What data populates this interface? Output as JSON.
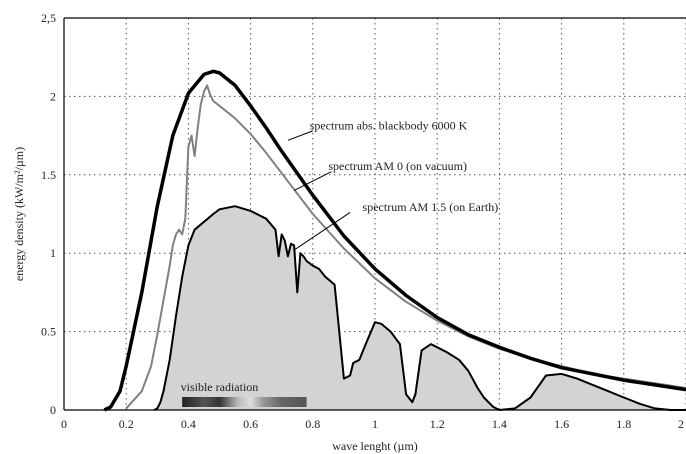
{
  "chart_data": {
    "type": "area",
    "title": "",
    "xlabel": "wave lenght (µm)",
    "ylabel": "energy density (kW/m²/µm)",
    "xlim": [
      0,
      2
    ],
    "ylim": [
      0,
      2.5
    ],
    "x_ticks": [
      0,
      0.2,
      0.4,
      0.6,
      0.8,
      1,
      1.2,
      1.4,
      1.6,
      1.8,
      2
    ],
    "x_tick_labels": [
      "0",
      "0.2",
      "0.4",
      "0.6",
      "0.8",
      "1",
      "1.2",
      "1.4",
      "1.6",
      "1.8",
      "2"
    ],
    "y_ticks": [
      0,
      0.5,
      1,
      1.5,
      2,
      2.5
    ],
    "y_tick_labels": [
      "0",
      "0.5",
      "1",
      "1.5",
      "2",
      "2,5"
    ],
    "grid": true,
    "series": [
      {
        "name": "spectrum abs. blackbody 6000 K",
        "color": "#000000",
        "style": "thick-line",
        "x": [
          0.13,
          0.15,
          0.18,
          0.2,
          0.25,
          0.3,
          0.35,
          0.4,
          0.45,
          0.48,
          0.5,
          0.55,
          0.6,
          0.65,
          0.7,
          0.8,
          0.9,
          1.0,
          1.1,
          1.2,
          1.3,
          1.4,
          1.5,
          1.6,
          1.7,
          1.8,
          1.9,
          2.0
        ],
        "y": [
          0.0,
          0.02,
          0.12,
          0.28,
          0.75,
          1.3,
          1.75,
          2.02,
          2.14,
          2.16,
          2.15,
          2.07,
          1.94,
          1.8,
          1.65,
          1.37,
          1.11,
          0.9,
          0.73,
          0.59,
          0.48,
          0.4,
          0.33,
          0.27,
          0.23,
          0.19,
          0.16,
          0.13
        ]
      },
      {
        "name": "spectrum AM 0 (on vacuum)",
        "color": "#808080",
        "style": "line",
        "x": [
          0.2,
          0.25,
          0.28,
          0.3,
          0.32,
          0.34,
          0.35,
          0.36,
          0.37,
          0.38,
          0.39,
          0.4,
          0.41,
          0.42,
          0.43,
          0.44,
          0.45,
          0.46,
          0.47,
          0.48,
          0.5,
          0.55,
          0.6,
          0.65,
          0.7,
          0.8,
          0.9,
          1.0,
          1.1,
          1.2,
          1.3,
          1.4,
          1.5,
          1.6,
          1.7,
          1.8,
          1.9,
          2.0
        ],
        "y": [
          0.01,
          0.12,
          0.28,
          0.48,
          0.7,
          0.92,
          1.05,
          1.12,
          1.15,
          1.12,
          1.22,
          1.68,
          1.75,
          1.62,
          1.8,
          1.95,
          2.03,
          2.07,
          2.01,
          1.97,
          1.94,
          1.86,
          1.76,
          1.64,
          1.51,
          1.25,
          1.03,
          0.84,
          0.69,
          0.57,
          0.47,
          0.39,
          0.33,
          0.28,
          0.23,
          0.2,
          0.17,
          0.14
        ]
      },
      {
        "name": "spectrum AM 1.5 (on Earth)",
        "color": "#000000",
        "fill": "#d3d3d3",
        "style": "filled-area",
        "x": [
          0.29,
          0.3,
          0.31,
          0.32,
          0.34,
          0.36,
          0.38,
          0.4,
          0.42,
          0.45,
          0.48,
          0.5,
          0.55,
          0.6,
          0.65,
          0.68,
          0.69,
          0.7,
          0.71,
          0.72,
          0.73,
          0.74,
          0.75,
          0.76,
          0.77,
          0.78,
          0.8,
          0.82,
          0.84,
          0.87,
          0.9,
          0.92,
          0.93,
          0.95,
          0.97,
          1.0,
          1.02,
          1.05,
          1.08,
          1.1,
          1.12,
          1.13,
          1.15,
          1.18,
          1.2,
          1.23,
          1.27,
          1.3,
          1.33,
          1.35,
          1.38,
          1.4,
          1.45,
          1.5,
          1.55,
          1.6,
          1.65,
          1.7,
          1.75,
          1.8,
          1.85,
          1.9,
          1.95,
          2.0
        ],
        "y": [
          0.0,
          0.01,
          0.05,
          0.12,
          0.32,
          0.6,
          0.85,
          1.05,
          1.15,
          1.2,
          1.25,
          1.28,
          1.3,
          1.27,
          1.22,
          1.15,
          0.98,
          1.12,
          1.08,
          0.98,
          1.06,
          1.05,
          0.75,
          1.0,
          0.98,
          0.95,
          0.92,
          0.9,
          0.85,
          0.8,
          0.2,
          0.22,
          0.3,
          0.32,
          0.42,
          0.56,
          0.55,
          0.5,
          0.42,
          0.1,
          0.05,
          0.1,
          0.38,
          0.42,
          0.4,
          0.37,
          0.32,
          0.25,
          0.14,
          0.08,
          0.02,
          0.0,
          0.01,
          0.08,
          0.22,
          0.23,
          0.2,
          0.16,
          0.12,
          0.08,
          0.04,
          0.01,
          0.0,
          0.0
        ]
      }
    ],
    "annotations": [
      {
        "text": "spectrum abs. blackbody 6000 K",
        "x": 0.79,
        "y": 1.79
      },
      {
        "text": "spectrum AM 0 (on vacuum)",
        "x": 0.85,
        "y": 1.53
      },
      {
        "text": "spectrum AM 1.5 (on Earth)",
        "x": 0.96,
        "y": 1.27
      },
      {
        "text": "visible radiation",
        "x": 0.375,
        "y": 0.12
      }
    ],
    "visible_band": {
      "x_start": 0.38,
      "x_end": 0.78
    }
  }
}
